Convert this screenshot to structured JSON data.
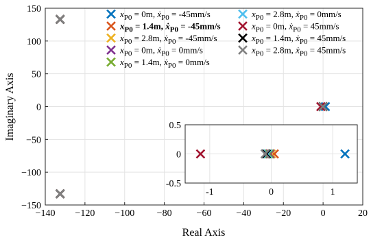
{
  "chart_data": [
    {
      "type": "scatter",
      "title": "",
      "xlabel": "Real Axis",
      "ylabel": "Imaginary Axis",
      "xlim": [
        -140,
        20
      ],
      "ylim": [
        -150,
        150
      ],
      "xticks": [
        -140,
        -120,
        -100,
        -80,
        -60,
        -40,
        -20,
        0,
        20
      ],
      "yticks": [
        -150,
        -100,
        -50,
        0,
        50,
        100,
        150
      ],
      "grid": true,
      "legend_placement": "top-right",
      "marker": "x",
      "series": [
        {
          "name": "x_P0 = 0m, ẋ_P0 = -45mm/s",
          "legend": {
            "pre": "x",
            "sub1": "P0",
            "mid": " =    0m, ",
            "xd": "ẋ",
            "sub2": "P0",
            "post": " = -45mm/s"
          },
          "bold": false,
          "color": "#0072BD",
          "points": [
            [
              1.2,
              0
            ],
            [
              -132.5,
              133
            ],
            [
              -132.5,
              -133
            ]
          ]
        },
        {
          "name": "x_P0 = 1.4m, ẋ_P0 = -45mm/s",
          "legend": {
            "pre": "x",
            "sub1": "P0",
            "mid": " = 1.4m, ",
            "xd": "ẋ",
            "sub2": "P0",
            "post": " = -45mm/s"
          },
          "bold": true,
          "color": "#D95319",
          "points": [
            [
              0.05,
              0
            ],
            [
              -132.5,
              133
            ],
            [
              -132.5,
              -133
            ]
          ]
        },
        {
          "name": "x_P0 = 2.8m, ẋ_P0 = -45mm/s",
          "legend": {
            "pre": "x",
            "sub1": "P0",
            "mid": " = 2.8m, ",
            "xd": "ẋ",
            "sub2": "P0",
            "post": " = -45mm/s"
          },
          "bold": false,
          "color": "#EDB120",
          "points": [
            [
              0.0,
              0
            ],
            [
              -132.5,
              133
            ],
            [
              -132.5,
              -133
            ]
          ]
        },
        {
          "name": "x_P0 = 0m, ẋ_P0 = 0mm/s",
          "legend": {
            "pre": "x",
            "sub1": "P0",
            "mid": " =    0m, ",
            "xd": "ẋ",
            "sub2": "P0",
            "post": " =    0mm/s"
          },
          "bold": false,
          "color": "#7E2F8E",
          "points": [
            [
              -0.02,
              0
            ],
            [
              -132.5,
              133
            ],
            [
              -132.5,
              -133
            ]
          ]
        },
        {
          "name": "x_P0 = 1.4m, ẋ_P0 = 0mm/s",
          "legend": {
            "pre": "x",
            "sub1": "P0",
            "mid": " = 1.4m, ",
            "xd": "ẋ",
            "sub2": "P0",
            "post": " =    0mm/s"
          },
          "bold": false,
          "color": "#77AC30",
          "points": [
            [
              -0.04,
              0
            ],
            [
              -132.5,
              133
            ],
            [
              -132.5,
              -133
            ]
          ]
        },
        {
          "name": "x_P0 = 2.8m, ẋ_P0 = 0mm/s",
          "legend": {
            "pre": "x",
            "sub1": "P0",
            "mid": " = 2.8m, ",
            "xd": "ẋ",
            "sub2": "P0",
            "post": " =    0mm/s"
          },
          "bold": false,
          "color": "#4DBEEE",
          "points": [
            [
              -0.06,
              0
            ],
            [
              -132.5,
              133
            ],
            [
              -132.5,
              -133
            ]
          ]
        },
        {
          "name": "x_P0 = 0m, ẋ_P0 = 45mm/s",
          "legend": {
            "pre": "x",
            "sub1": "P0",
            "mid": " =    0m, ",
            "xd": "ẋ",
            "sub2": "P0",
            "post": " = 45mm/s"
          },
          "bold": false,
          "color": "#A2142F",
          "points": [
            [
              -1.15,
              0
            ],
            [
              -132.5,
              133
            ],
            [
              -132.5,
              -133
            ]
          ]
        },
        {
          "name": "x_P0 = 1.4m, ẋ_P0 = 45mm/s",
          "legend": {
            "pre": "x",
            "sub1": "P0",
            "mid": " = 1.4m, ",
            "xd": "ẋ",
            "sub2": "P0",
            "post": " = 45mm/s"
          },
          "bold": false,
          "color": "#000000",
          "points": [
            [
              -0.08,
              0
            ],
            [
              -132.5,
              133
            ],
            [
              -132.5,
              -133
            ]
          ]
        },
        {
          "name": "x_P0 = 2.8m, ẋ_P0 = 45mm/s",
          "legend": {
            "pre": "x",
            "sub1": "P0",
            "mid": " = 2.8m, ",
            "xd": "ẋ",
            "sub2": "P0",
            "post": " = 45mm/s"
          },
          "bold": false,
          "color": "#808080",
          "points": [
            [
              -0.1,
              0
            ],
            [
              -132.5,
              133
            ],
            [
              -132.5,
              -133
            ]
          ]
        }
      ]
    },
    {
      "type": "scatter",
      "inset": true,
      "xlim": [
        -1.4,
        1.4
      ],
      "ylim": [
        -0.5,
        0.5
      ],
      "xticks": [
        -1,
        0,
        1
      ],
      "yticks": [
        -0.5,
        0,
        0.5
      ],
      "grid": true,
      "marker": "x",
      "series_ref": "main"
    }
  ]
}
